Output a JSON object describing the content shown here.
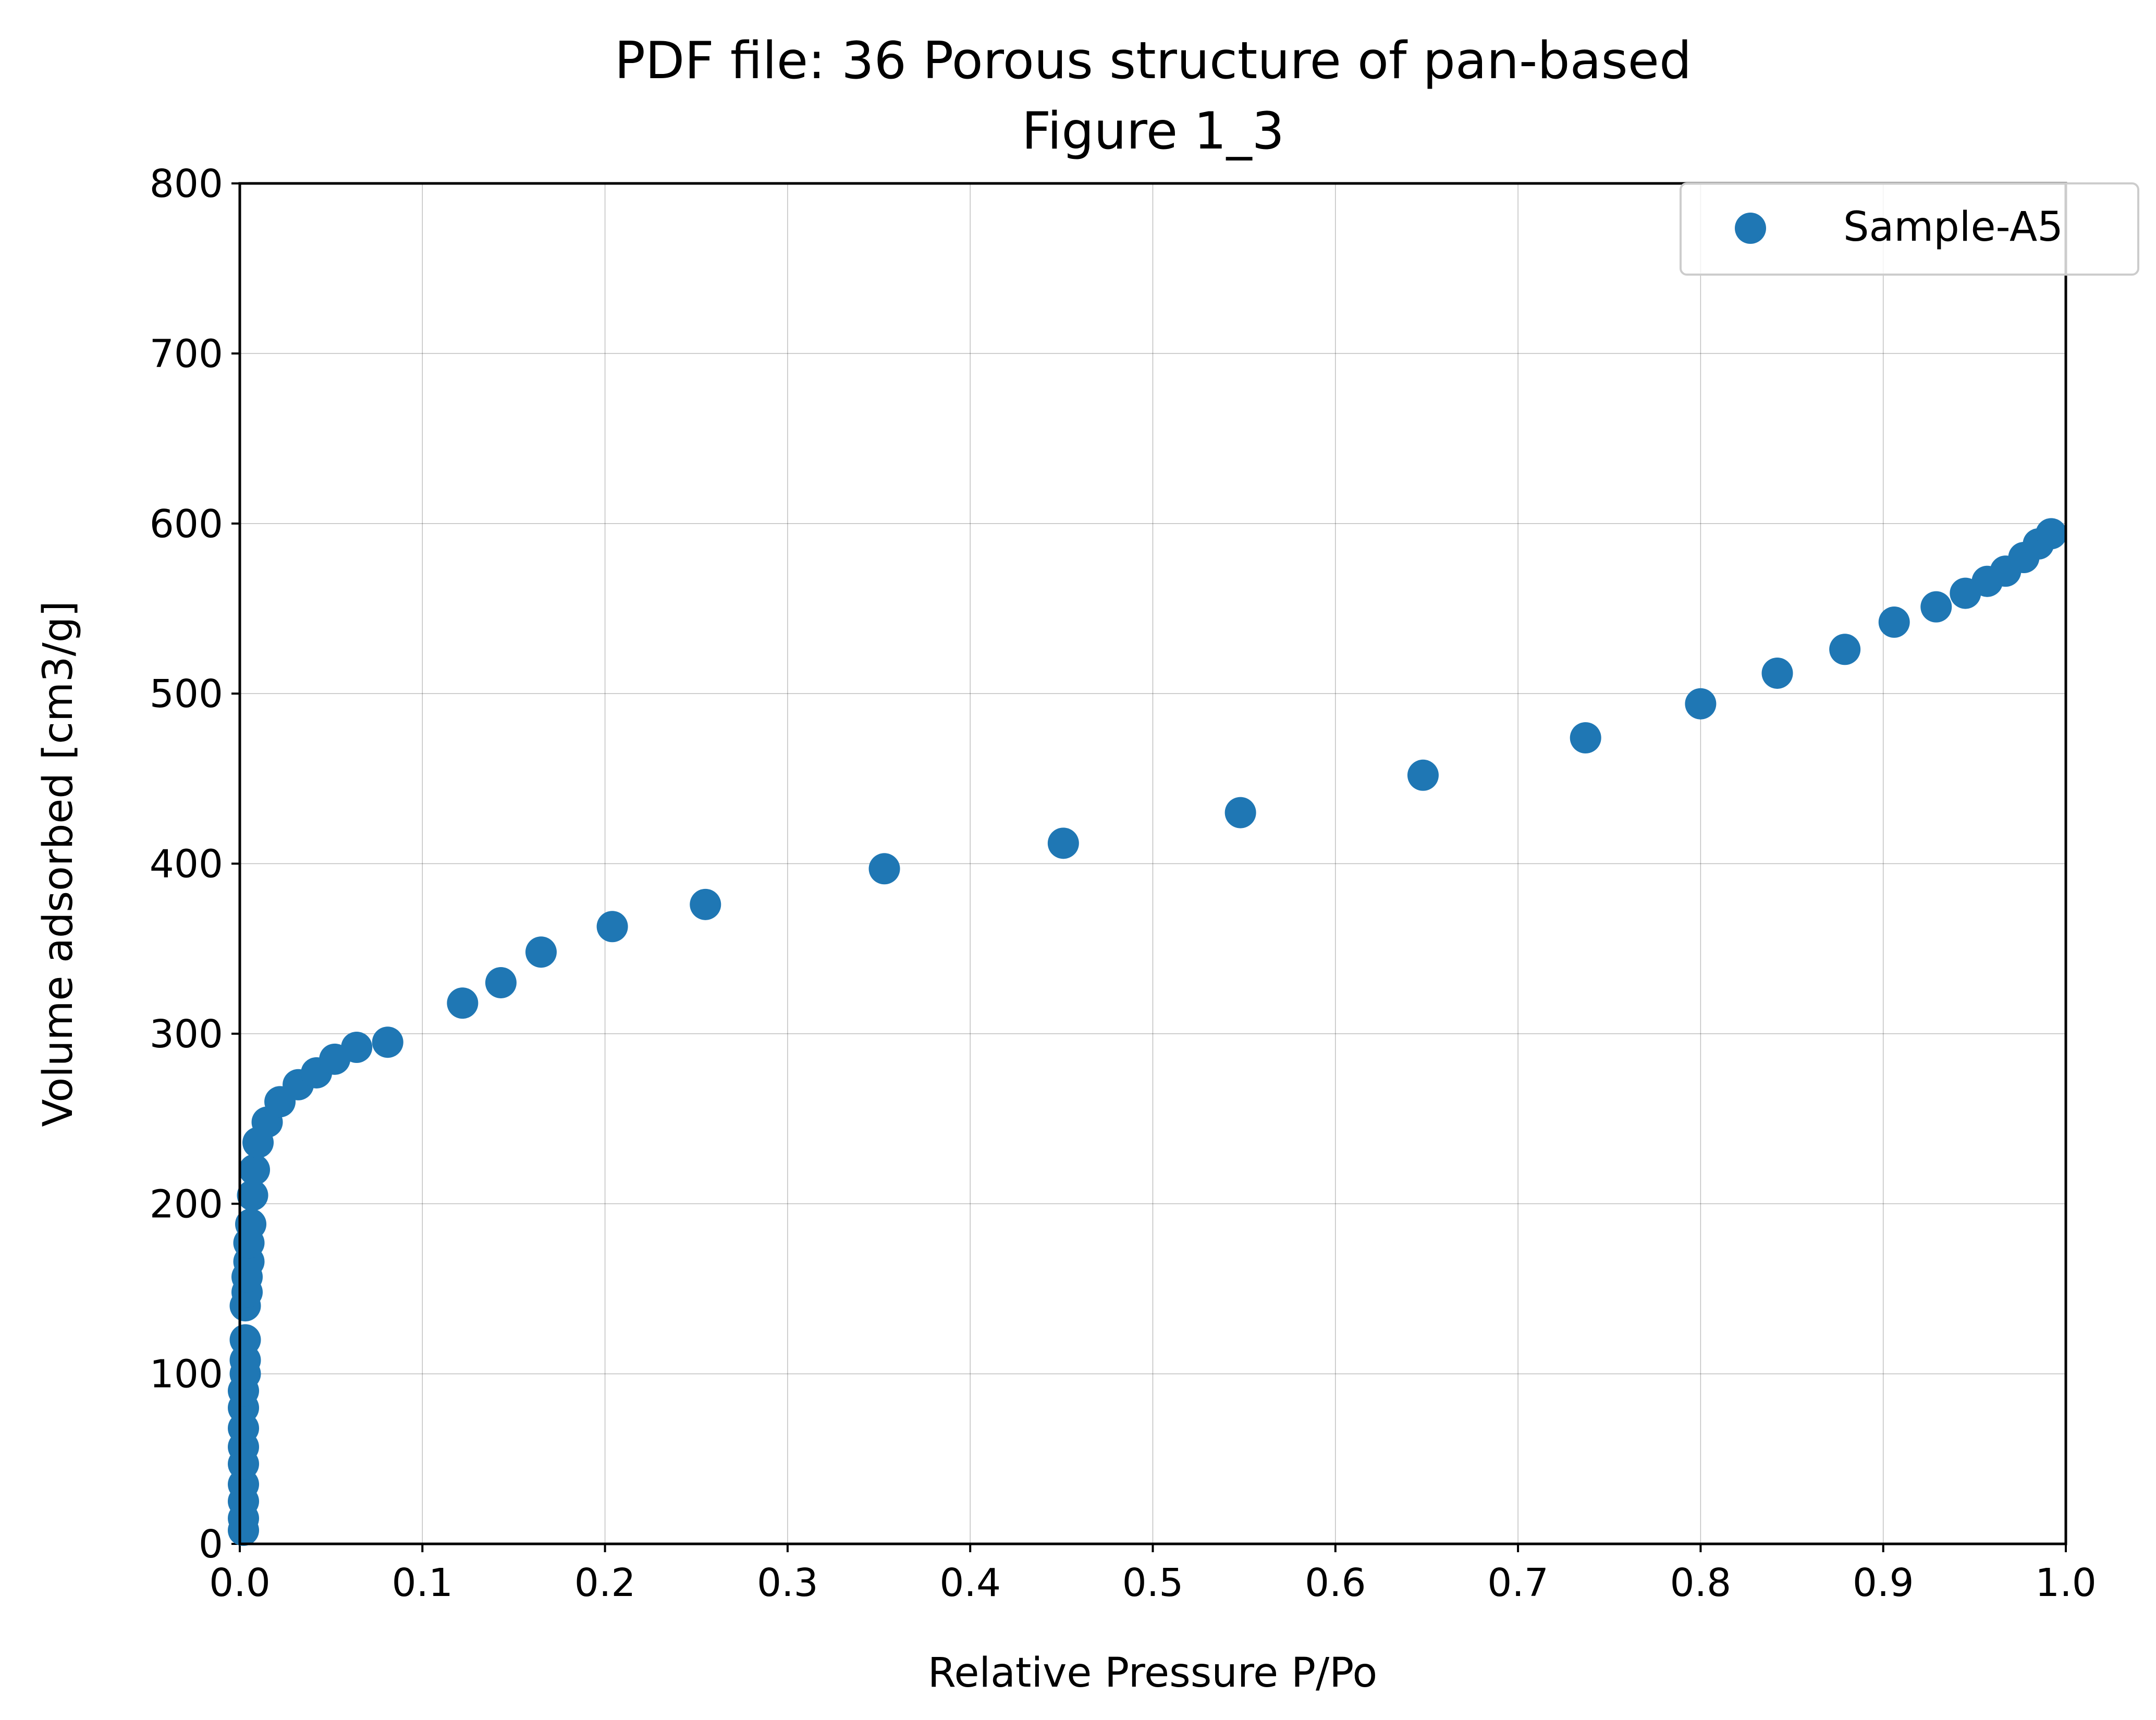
{
  "chart_data": {
    "type": "scatter",
    "title": "PDF file: 36 Porous structure of pan-based",
    "subtitle": "Figure 1_3",
    "xlabel": "Relative Pressure P/Po",
    "ylabel": "Volume adsorbed [cm3/g]",
    "xlim": [
      0.0,
      1.0
    ],
    "ylim": [
      0,
      800
    ],
    "xticks": [
      "0.0",
      "0.1",
      "0.2",
      "0.3",
      "0.4",
      "0.5",
      "0.6",
      "0.7",
      "0.8",
      "0.9",
      "1.0"
    ],
    "yticks": [
      "0",
      "100",
      "200",
      "300",
      "400",
      "500",
      "600",
      "700",
      "800"
    ],
    "grid": true,
    "legend_position": "top-right",
    "colors": {
      "series": "#1f77b4"
    },
    "series": [
      {
        "name": "Sample-A5",
        "points": [
          [
            0.002,
            8
          ],
          [
            0.002,
            15
          ],
          [
            0.002,
            25
          ],
          [
            0.002,
            35
          ],
          [
            0.002,
            47
          ],
          [
            0.002,
            57
          ],
          [
            0.002,
            68
          ],
          [
            0.002,
            80
          ],
          [
            0.002,
            90
          ],
          [
            0.003,
            100
          ],
          [
            0.003,
            108
          ],
          [
            0.003,
            120
          ],
          [
            0.003,
            140
          ],
          [
            0.004,
            148
          ],
          [
            0.004,
            157
          ],
          [
            0.005,
            166
          ],
          [
            0.005,
            177
          ],
          [
            0.006,
            188
          ],
          [
            0.007,
            205
          ],
          [
            0.008,
            220
          ],
          [
            0.01,
            236
          ],
          [
            0.015,
            248
          ],
          [
            0.022,
            260
          ],
          [
            0.032,
            270
          ],
          [
            0.042,
            277
          ],
          [
            0.052,
            285
          ],
          [
            0.064,
            292
          ],
          [
            0.081,
            295
          ],
          [
            0.122,
            318
          ],
          [
            0.143,
            330
          ],
          [
            0.165,
            348
          ],
          [
            0.204,
            363
          ],
          [
            0.255,
            376
          ],
          [
            0.353,
            397
          ],
          [
            0.451,
            412
          ],
          [
            0.548,
            430
          ],
          [
            0.648,
            452
          ],
          [
            0.737,
            474
          ],
          [
            0.8,
            494
          ],
          [
            0.842,
            512
          ],
          [
            0.879,
            526
          ],
          [
            0.906,
            542
          ],
          [
            0.929,
            551
          ],
          [
            0.945,
            559
          ],
          [
            0.957,
            566
          ],
          [
            0.967,
            572
          ],
          [
            0.977,
            580
          ],
          [
            0.985,
            588
          ],
          [
            0.992,
            594
          ]
        ]
      }
    ]
  }
}
